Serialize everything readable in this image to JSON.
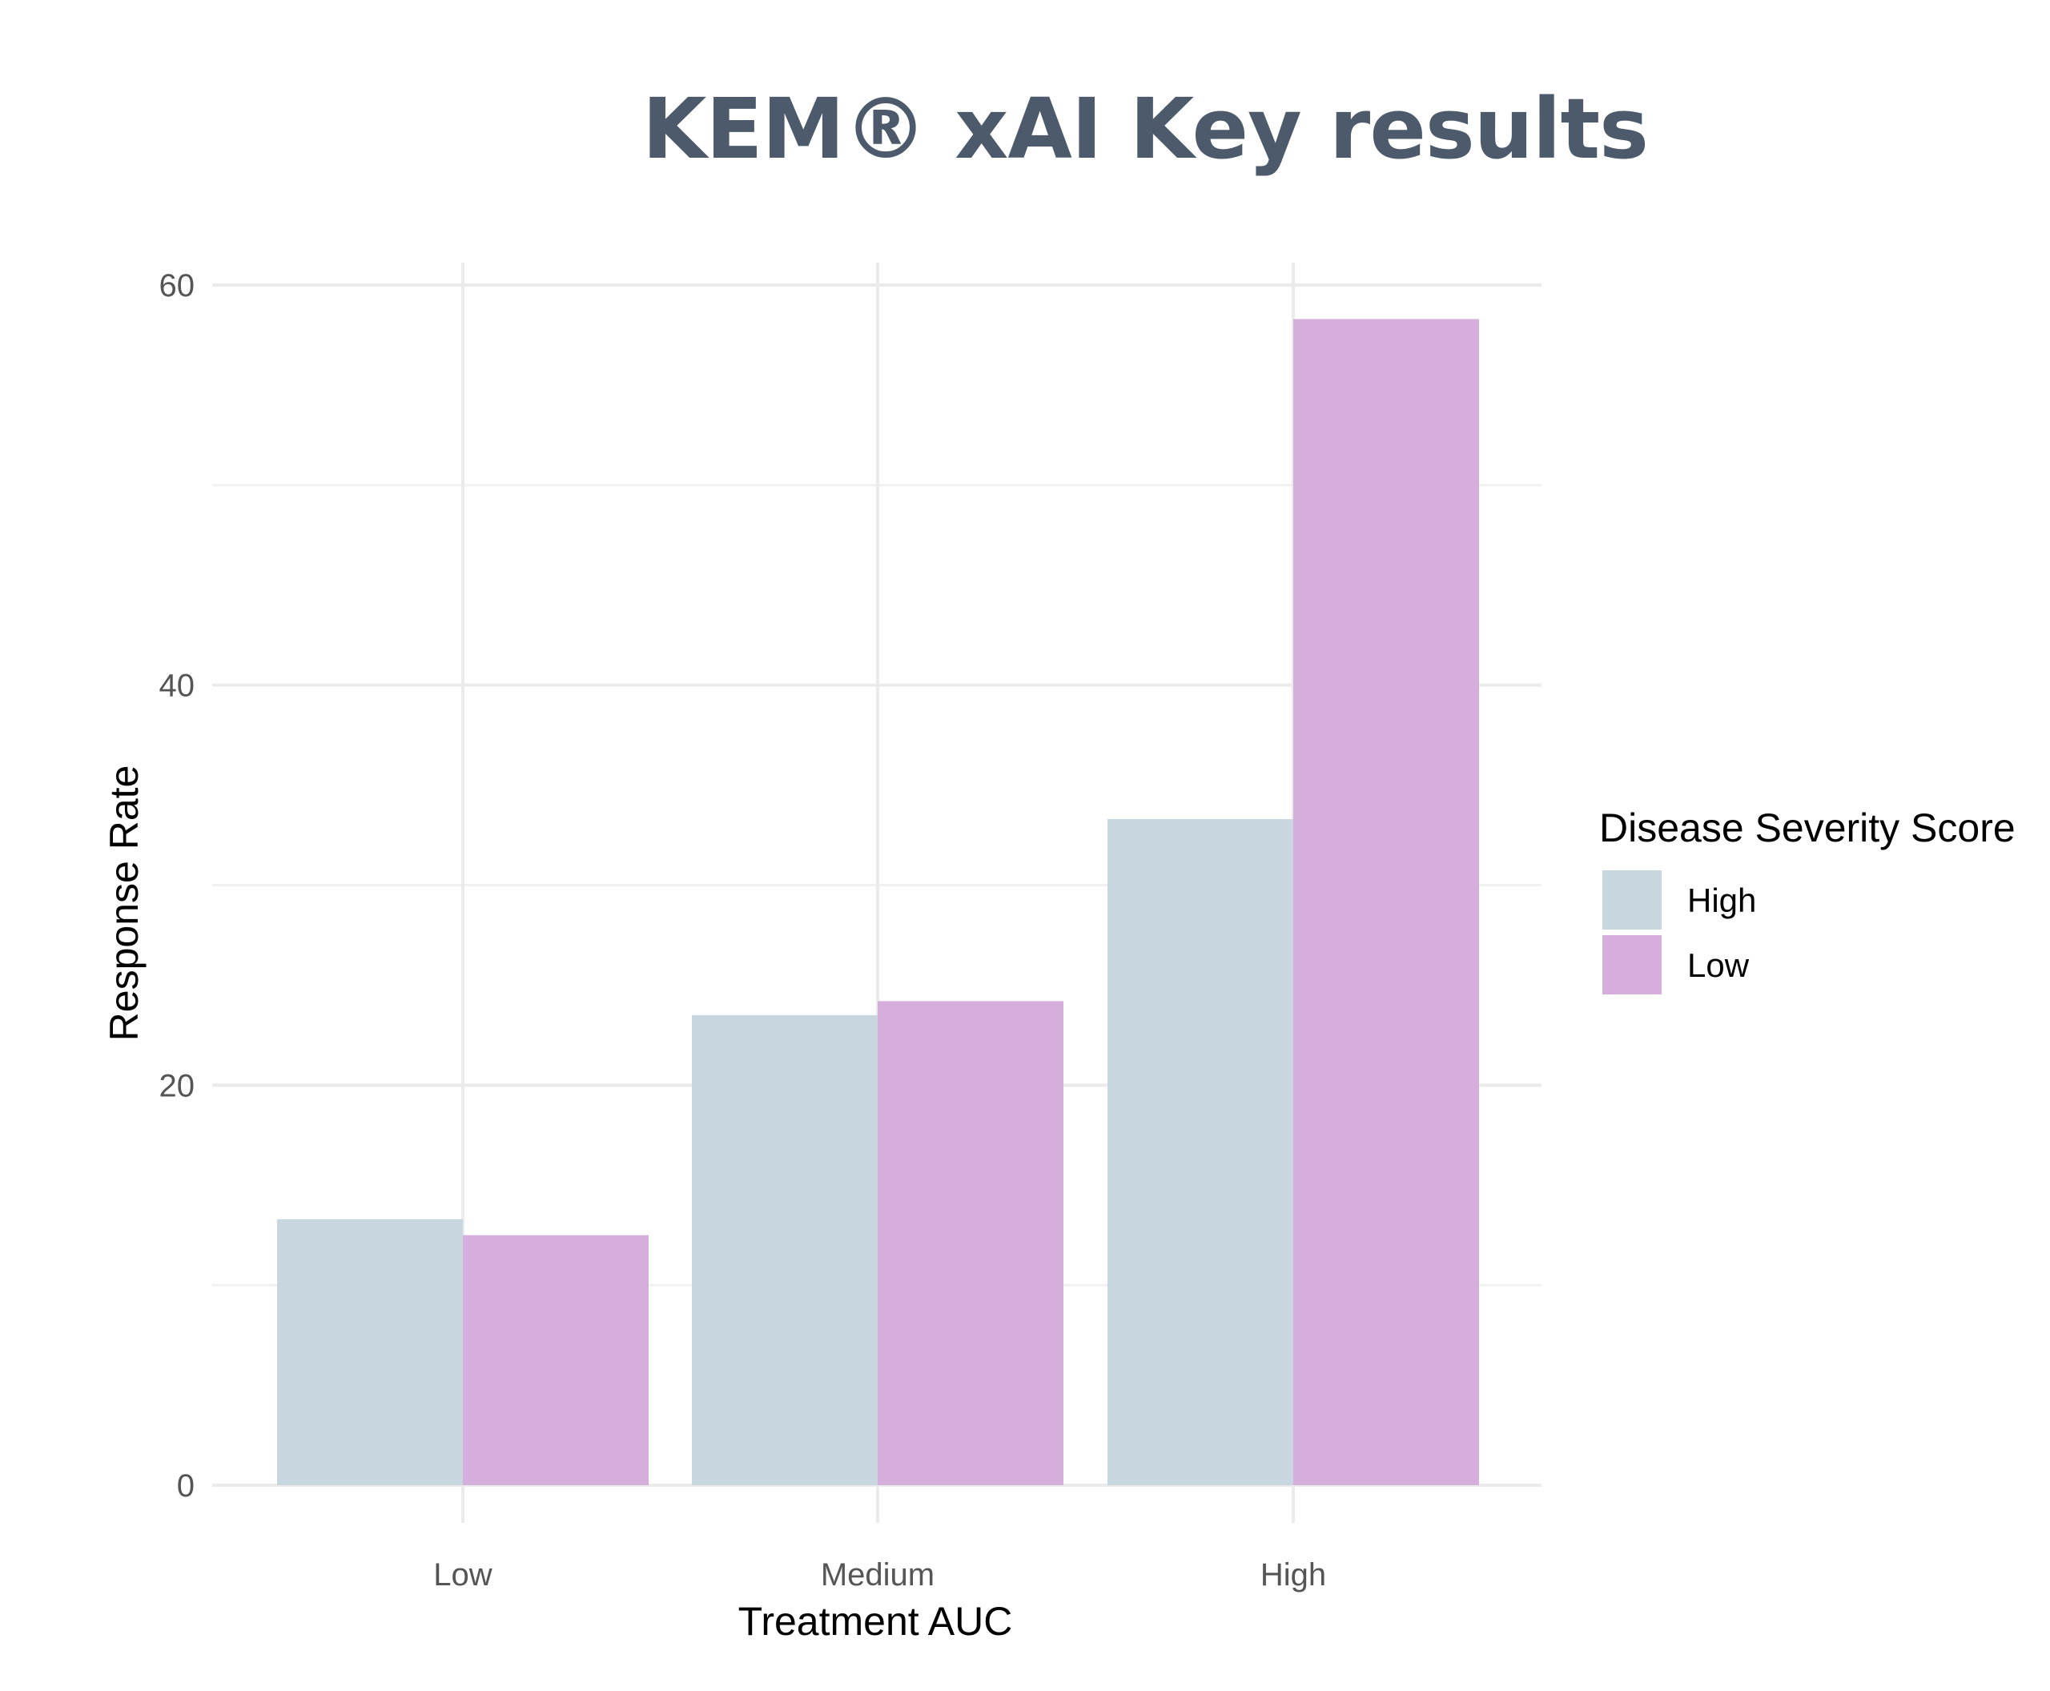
{
  "chart_data": {
    "type": "bar",
    "title": "KEM® xAI Key results",
    "xlabel": "Treatment AUC",
    "ylabel": "Response Rate",
    "categories": [
      "Low",
      "Medium",
      "High"
    ],
    "series": [
      {
        "name": "High",
        "values": [
          13.3,
          23.5,
          33.3
        ],
        "color": "#c8d6e0"
      },
      {
        "name": "Low",
        "values": [
          12.5,
          24.2,
          58.3
        ],
        "color": "#d5aedc"
      }
    ],
    "ylim": [
      0,
      60
    ],
    "yticks": [
      0,
      20,
      40,
      60
    ],
    "grid": true,
    "legend": {
      "title": "Disease Severity Score",
      "placement": "right"
    }
  }
}
